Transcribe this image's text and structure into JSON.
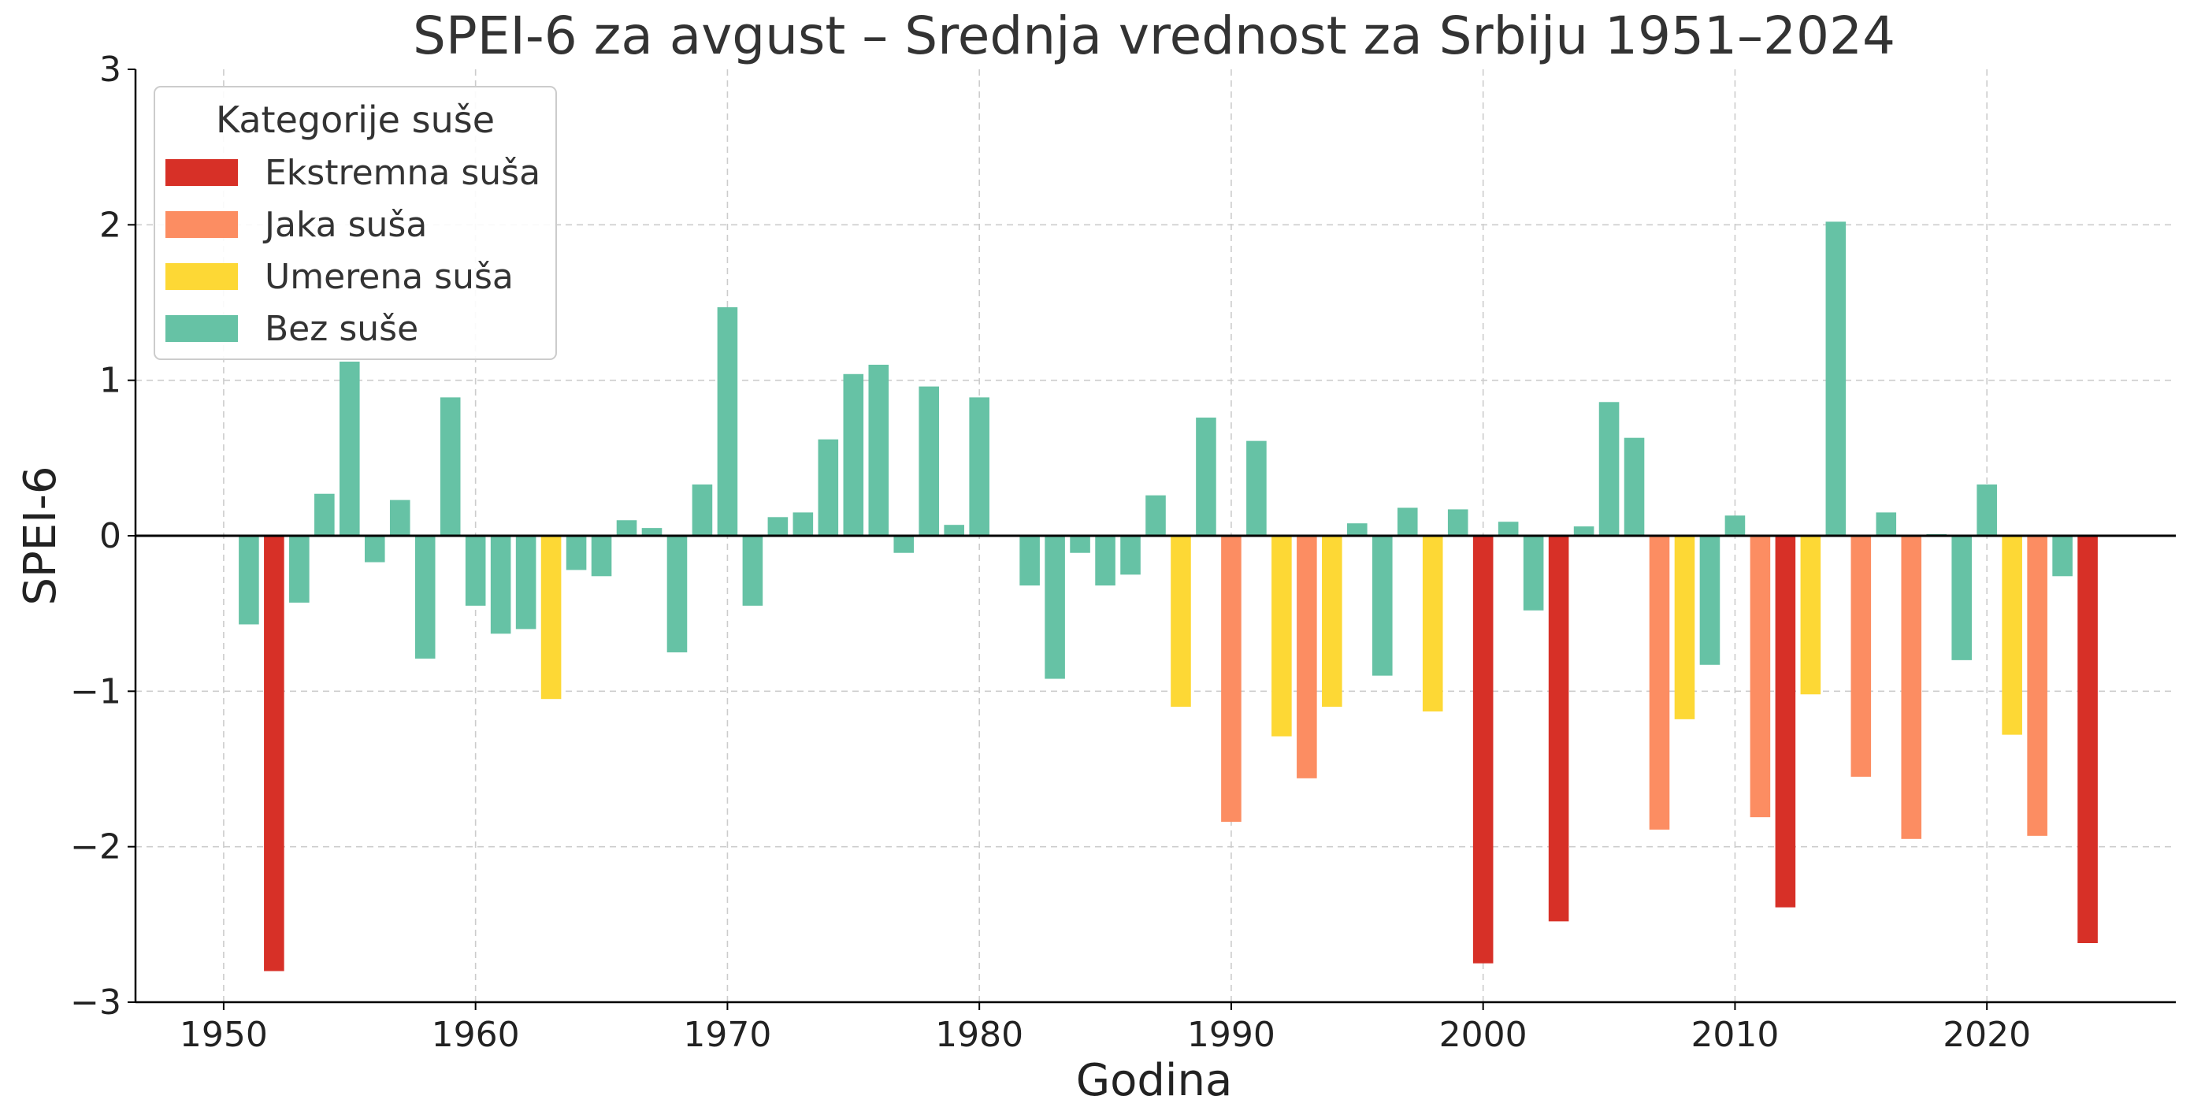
{
  "chart_data": {
    "type": "bar",
    "title": "SPEI-6 za avgust – Srednja vrednost za Srbiju 1951–2024",
    "xlabel": "Godina",
    "ylabel": "SPEI-6",
    "xlim": [
      1946.5,
      2027.5
    ],
    "ylim": [
      -3,
      3
    ],
    "xticks": [
      1950,
      1960,
      1970,
      1980,
      1990,
      2000,
      2010,
      2020
    ],
    "yticks": [
      3,
      2,
      1,
      0,
      -1,
      -2,
      -3
    ],
    "ytick_labels": [
      "3",
      "2",
      "1",
      "0",
      "−1",
      "−2",
      "−3"
    ],
    "grid": true,
    "zero_line": true,
    "legend": {
      "title": "Kategorije suše",
      "position": "top-left",
      "entries": [
        {
          "key": "extreme",
          "label": "Ekstremna suša",
          "color": "#d73027"
        },
        {
          "key": "severe",
          "label": "Jaka suša",
          "color": "#fc8d62"
        },
        {
          "key": "moderate",
          "label": "Umerena suša",
          "color": "#fdd835"
        },
        {
          "key": "none",
          "label": "Bez suše",
          "color": "#66c2a5"
        }
      ]
    },
    "category_rule": "extreme: v <= -2; severe: -2 < v <= -1.5; moderate: -1.5 < v <= -1; none: v > -1",
    "years": [
      1951,
      1952,
      1953,
      1954,
      1955,
      1956,
      1957,
      1958,
      1959,
      1960,
      1961,
      1962,
      1963,
      1964,
      1965,
      1966,
      1967,
      1968,
      1969,
      1970,
      1971,
      1972,
      1973,
      1974,
      1975,
      1976,
      1977,
      1978,
      1979,
      1980,
      1981,
      1982,
      1983,
      1984,
      1985,
      1986,
      1987,
      1988,
      1989,
      1990,
      1991,
      1992,
      1993,
      1994,
      1995,
      1996,
      1997,
      1998,
      1999,
      2000,
      2001,
      2002,
      2003,
      2004,
      2005,
      2006,
      2007,
      2008,
      2009,
      2010,
      2011,
      2012,
      2013,
      2014,
      2015,
      2016,
      2017,
      2018,
      2019,
      2020,
      2021,
      2022,
      2023,
      2024
    ],
    "values": [
      -0.57,
      -2.8,
      -0.43,
      0.27,
      1.12,
      -0.17,
      0.23,
      -0.79,
      0.89,
      -0.45,
      -0.63,
      -0.6,
      -1.05,
      -0.22,
      -0.26,
      0.1,
      0.05,
      -0.75,
      0.33,
      1.47,
      -0.45,
      0.12,
      0.15,
      0.62,
      1.04,
      1.1,
      -0.11,
      0.96,
      0.07,
      0.89,
      0.0,
      -0.32,
      -0.92,
      -0.11,
      -0.32,
      -0.25,
      0.26,
      -1.1,
      0.76,
      -1.84,
      0.61,
      -1.29,
      -1.56,
      -1.1,
      0.08,
      -0.9,
      0.18,
      -1.13,
      0.17,
      -2.75,
      0.09,
      -0.48,
      -2.48,
      0.06,
      0.86,
      0.63,
      -1.89,
      -1.18,
      -0.83,
      0.13,
      -1.81,
      -2.39,
      -1.02,
      2.02,
      -1.55,
      0.15,
      -1.95,
      0.01,
      -0.8,
      0.33,
      -1.28,
      -1.93,
      -0.26,
      -2.62
    ]
  }
}
